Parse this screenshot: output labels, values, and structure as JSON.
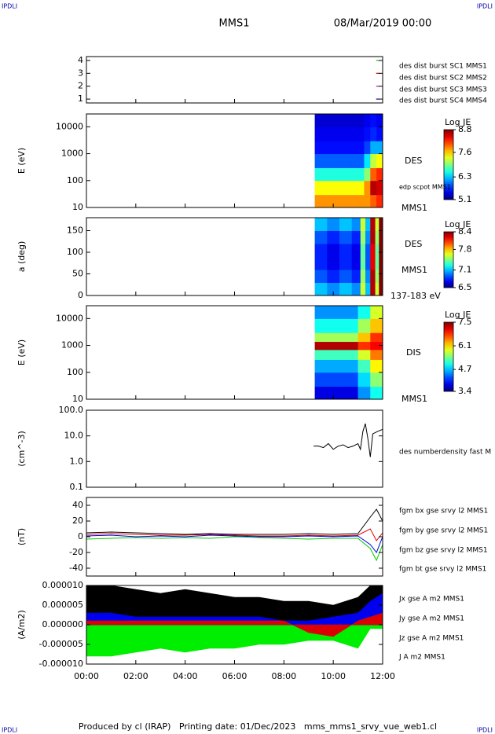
{
  "header": {
    "corner_tl": "IPDLI",
    "corner_tr": "IPDLI",
    "title": "MMS1",
    "date": "08/Mar/2019 00:00"
  },
  "footer": {
    "text": "Produced by cl (IRAP)   Printing date: 01/Dec/2023   mms_mms1_srvy_vue_web1.cl",
    "corner_bl": "IPDLI",
    "corner_br": "IPDLI"
  },
  "xaxis": {
    "xlim": [
      0,
      12
    ],
    "xticks": [
      {
        "value": 0,
        "label": "00:00"
      },
      {
        "value": 2,
        "label": "02:00"
      },
      {
        "value": 4,
        "label": "04:00"
      },
      {
        "value": 6,
        "label": "06:00"
      },
      {
        "value": 8,
        "label": "08:00"
      },
      {
        "value": 10,
        "label": "10:00"
      },
      {
        "value": 12,
        "label": "12:00"
      }
    ]
  },
  "chart_data": [
    {
      "type": "scatter",
      "ylim": [
        0.7,
        4.3
      ],
      "yticks": [
        1,
        2,
        3,
        4
      ],
      "series": [
        {
          "name": "des dist burst SC1 MMS1",
          "color": "#0000cc",
          "x": [
            11.8
          ],
          "values": [
            1
          ]
        },
        {
          "name": "des dist burst SC2 MMS2",
          "color": "#cc00cc",
          "x": [
            11.8
          ],
          "values": [
            2
          ]
        },
        {
          "name": "des dist burst SC3 MMS3",
          "color": "#cc0000",
          "x": [
            11.8
          ],
          "values": [
            3
          ]
        },
        {
          "name": "des dist burst SC4 MMS4",
          "color": "#00cc00",
          "x": [
            11.8
          ],
          "values": [
            4
          ]
        }
      ]
    },
    {
      "type": "heatmap",
      "ylabel": "E (eV)",
      "log": true,
      "ylim": [
        10,
        30000
      ],
      "yticks": [
        10,
        100,
        1000,
        10000
      ],
      "annotations": [
        "DES",
        "edp scpot MMS1",
        "MMS1"
      ],
      "colorbar_label": "Log JE",
      "clim": [
        5.1,
        8.8
      ],
      "cticks": [
        8.8,
        7.6,
        6.3,
        5.1
      ],
      "xbins": [
        9.25,
        9.75,
        10.25,
        10.75,
        11.25,
        11.5,
        11.75,
        12
      ],
      "ybins": [
        10,
        30,
        100,
        300,
        1000,
        3000,
        10000,
        30000
      ],
      "values": [
        [
          7.8,
          7.8,
          7.8,
          7.8,
          7.8,
          8.0,
          8.2
        ],
        [
          7.4,
          7.4,
          7.4,
          7.4,
          7.8,
          8.6,
          8.5
        ],
        [
          6.6,
          6.6,
          6.6,
          6.6,
          7.0,
          8.0,
          8.2
        ],
        [
          5.9,
          5.9,
          5.9,
          5.9,
          6.4,
          7.2,
          7.4
        ],
        [
          5.6,
          5.6,
          5.6,
          5.6,
          5.8,
          6.2,
          6.2
        ],
        [
          5.5,
          5.5,
          5.5,
          5.5,
          5.6,
          5.7,
          5.6
        ],
        [
          5.4,
          5.4,
          5.4,
          5.4,
          5.5,
          5.6,
          5.5
        ]
      ]
    },
    {
      "type": "heatmap",
      "ylabel": "a (deg)",
      "ylim": [
        0,
        180
      ],
      "yticks": [
        0,
        50,
        100,
        150
      ],
      "annotations": [
        "DES",
        "MMS1",
        "137-183 eV"
      ],
      "colorbar_label": "Log JE",
      "clim": [
        6.5,
        8.4
      ],
      "cticks": [
        8.4,
        7.8,
        7.1,
        6.5
      ],
      "xbins": [
        9.25,
        9.75,
        10.25,
        10.75,
        11.1,
        11.3,
        11.5,
        11.7,
        11.85,
        12
      ],
      "ybins": [
        0,
        30,
        60,
        90,
        120,
        150,
        180
      ],
      "values": [
        [
          7.1,
          7.0,
          7.1,
          7.0,
          7.6,
          7.1,
          8.3,
          7.6,
          8.4
        ],
        [
          6.9,
          6.8,
          6.9,
          6.8,
          7.5,
          7.0,
          8.3,
          7.5,
          8.4
        ],
        [
          6.8,
          6.7,
          6.8,
          6.7,
          7.4,
          6.9,
          8.2,
          7.4,
          8.4
        ],
        [
          6.8,
          6.7,
          6.8,
          6.7,
          7.4,
          6.9,
          8.2,
          7.4,
          8.4
        ],
        [
          6.9,
          6.8,
          6.9,
          6.8,
          7.5,
          7.0,
          8.3,
          7.5,
          8.4
        ],
        [
          7.1,
          7.0,
          7.1,
          7.0,
          7.6,
          7.1,
          8.3,
          7.6,
          8.4
        ]
      ]
    },
    {
      "type": "heatmap",
      "ylabel": "E (eV)",
      "log": true,
      "ylim": [
        10,
        30000
      ],
      "yticks": [
        10,
        100,
        1000,
        10000
      ],
      "annotations": [
        "DIS",
        "MMS1"
      ],
      "colorbar_label": "Log JE",
      "clim": [
        3.4,
        7.5
      ],
      "cticks": [
        7.5,
        6.1,
        4.7,
        3.4
      ],
      "xbins": [
        9.25,
        10.25,
        11.0,
        11.5,
        12
      ],
      "ybins": [
        10,
        30,
        100,
        300,
        700,
        1400,
        3000,
        10000,
        30000
      ],
      "values": [
        [
          3.8,
          3.8,
          4.5,
          5.0
        ],
        [
          4.2,
          4.2,
          4.8,
          5.5
        ],
        [
          4.6,
          4.6,
          5.2,
          6.0
        ],
        [
          5.2,
          5.2,
          5.8,
          6.5
        ],
        [
          7.3,
          7.3,
          6.8,
          7.0
        ],
        [
          5.6,
          5.6,
          6.2,
          6.8
        ],
        [
          5.0,
          5.0,
          5.6,
          6.2
        ],
        [
          4.5,
          4.5,
          5.0,
          5.8
        ]
      ]
    },
    {
      "type": "line",
      "ylabel": "(cm^-3)",
      "log": true,
      "ylim": [
        0.1,
        100
      ],
      "yticks": [
        {
          "value": 0.1,
          "label": "0.1"
        },
        {
          "value": 1,
          "label": "1.0"
        },
        {
          "value": 10,
          "label": "10.0"
        },
        {
          "value": 100,
          "label": "100.0"
        }
      ],
      "series": [
        {
          "name": "des numberdensity fast M",
          "color": "#000000",
          "x": [
            9.2,
            9.4,
            9.6,
            9.8,
            10.0,
            10.2,
            10.4,
            10.6,
            10.8,
            11.0,
            11.1,
            11.2,
            11.3,
            11.4,
            11.5,
            11.6,
            11.8,
            12.0
          ],
          "values": [
            4,
            4,
            3.5,
            5,
            3,
            4,
            4.5,
            3.5,
            4,
            5,
            3,
            15,
            30,
            8,
            1.5,
            12,
            15,
            18
          ]
        }
      ]
    },
    {
      "type": "line",
      "ylabel": "(nT)",
      "ylim": [
        -50,
        50
      ],
      "yticks": [
        -40,
        -20,
        0,
        20,
        40
      ],
      "series": [
        {
          "name": "fgm bx gse srvy l2 MMS1",
          "color": "#dd0000",
          "x": [
            0,
            1,
            2,
            3,
            4,
            5,
            6,
            7,
            8,
            9,
            10,
            11,
            11.5,
            11.75,
            12
          ],
          "values": [
            3,
            4,
            3,
            2,
            2,
            3,
            2,
            1,
            1,
            2,
            1,
            2,
            10,
            -5,
            5
          ]
        },
        {
          "name": "fgm by gse srvy l2 MMS1",
          "color": "#00cc00",
          "x": [
            0,
            1,
            2,
            3,
            4,
            5,
            6,
            7,
            8,
            9,
            10,
            11,
            11.5,
            11.75,
            12
          ],
          "values": [
            -3,
            -2,
            -1,
            -2,
            -1,
            -2,
            0,
            -1,
            -2,
            -3,
            -2,
            -2,
            -15,
            -30,
            -10
          ]
        },
        {
          "name": "fgm bz gse srvy l2 MMS1",
          "color": "#0000dd",
          "x": [
            0,
            1,
            2,
            3,
            4,
            5,
            6,
            7,
            8,
            9,
            10,
            11,
            11.5,
            11.75,
            12
          ],
          "values": [
            1,
            2,
            0,
            1,
            0,
            2,
            1,
            0,
            0,
            1,
            0,
            1,
            -10,
            -20,
            0
          ]
        },
        {
          "name": "fgm bt gse srvy l2 MMS1",
          "color": "#000000",
          "x": [
            0,
            1,
            2,
            3,
            4,
            5,
            6,
            7,
            8,
            9,
            10,
            11,
            11.5,
            11.75,
            12
          ],
          "values": [
            5,
            6,
            5,
            4,
            3,
            4,
            3,
            3,
            3,
            4,
            3,
            4,
            25,
            35,
            20
          ]
        }
      ]
    },
    {
      "type": "area",
      "ylabel": "(A/m2)",
      "ylim": [
        -1e-05,
        1e-05
      ],
      "yticks": [
        {
          "value": 1e-05,
          "label": "0.000010"
        },
        {
          "value": 5e-06,
          "label": "0.000005"
        },
        {
          "value": 0,
          "label": "0.000000"
        },
        {
          "value": -5e-06,
          "label": "-0.000005"
        },
        {
          "value": -1e-05,
          "label": "-0.000010"
        }
      ],
      "series": [
        {
          "name": "Jx gse A m2 MMS1",
          "color": "#dd0000",
          "x": [
            0,
            1,
            2,
            3,
            4,
            5,
            6,
            7,
            8,
            9,
            10,
            11,
            11.5,
            12
          ],
          "values": [
            1e-06,
            1e-06,
            1e-06,
            1e-06,
            1e-06,
            1e-06,
            1e-06,
            1e-06,
            1e-06,
            -2e-06,
            -3e-06,
            1e-06,
            2e-06,
            3e-06
          ]
        },
        {
          "name": "Jy gse A m2 MMS1",
          "color": "#00ee00",
          "x": [
            0,
            1,
            2,
            3,
            4,
            5,
            6,
            7,
            8,
            9,
            10,
            11,
            11.5,
            12
          ],
          "values": [
            -8e-06,
            -8e-06,
            -7e-06,
            -6e-06,
            -7e-06,
            -6e-06,
            -6e-06,
            -5e-06,
            -5e-06,
            -4e-06,
            -4e-06,
            -6e-06,
            -1e-06,
            -1e-06
          ]
        },
        {
          "name": "Jz gse A m2 MMS1",
          "color": "#0000ee",
          "x": [
            0,
            1,
            2,
            3,
            4,
            5,
            6,
            7,
            8,
            9,
            10,
            11,
            11.5,
            12
          ],
          "values": [
            3e-06,
            3e-06,
            2e-06,
            2e-06,
            2e-06,
            2e-06,
            2e-06,
            2e-06,
            1e-06,
            1e-06,
            2e-06,
            3e-06,
            6e-06,
            8e-06
          ]
        },
        {
          "name": "J A m2 MMS1",
          "color": "#000000",
          "x": [
            0,
            1,
            2,
            3,
            4,
            5,
            6,
            7,
            8,
            9,
            10,
            11,
            11.5,
            12
          ],
          "values": [
            1e-05,
            1e-05,
            9e-06,
            8e-06,
            9e-06,
            8e-06,
            7e-06,
            7e-06,
            6e-06,
            6e-06,
            5e-06,
            7e-06,
            1e-05,
            1e-05
          ]
        }
      ]
    }
  ]
}
